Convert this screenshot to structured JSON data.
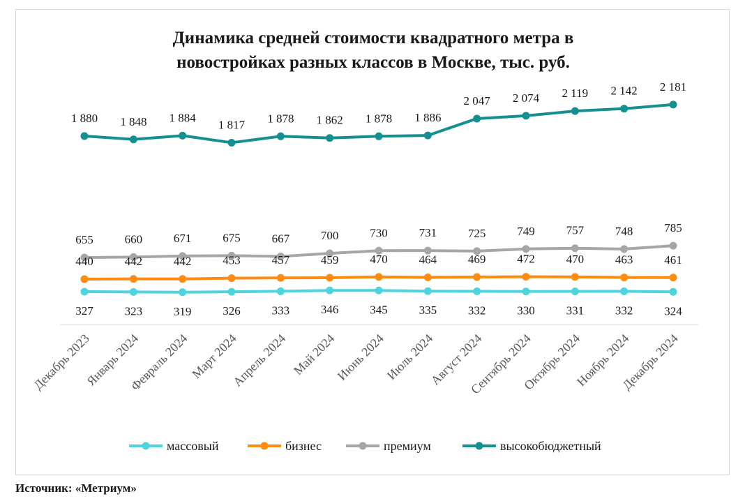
{
  "chart_data": {
    "type": "line",
    "title_lines": [
      "Динамика  средней стоимости  квадратного  метра в",
      "новостройках  разных классов  в Москве, тыс. руб."
    ],
    "categories": [
      "Декабрь 2023",
      "Январь 2024",
      "Февраль 2024",
      "Март 2024",
      "Апрель 2024",
      "Май 2024",
      "Июнь 2024",
      "Июль 2024",
      "Август 2024",
      "Сентябрь 2024",
      "Октябрь 2024",
      "Ноябрь 2024",
      "Декабрь 2024"
    ],
    "series": [
      {
        "name": "массовый",
        "color": "#4fd3dd",
        "label_position": "below",
        "values": [
          327,
          323,
          319,
          326,
          333,
          346,
          345,
          335,
          332,
          330,
          331,
          332,
          324
        ],
        "labels": [
          "327",
          "323",
          "319",
          "326",
          "333",
          "346",
          "345",
          "335",
          "332",
          "330",
          "331",
          "332",
          "324"
        ]
      },
      {
        "name": "бизнес",
        "color": "#ff8c10",
        "label_position": "above",
        "values": [
          440,
          442,
          442,
          453,
          457,
          459,
          470,
          464,
          469,
          472,
          470,
          463,
          461
        ],
        "labels": [
          "440",
          "442",
          "442",
          "453",
          "457",
          "459",
          "470",
          "464",
          "469",
          "472",
          "470",
          "463",
          "461"
        ]
      },
      {
        "name": "премиум",
        "color": "#a6a6a6",
        "label_position": "above",
        "values": [
          655,
          660,
          671,
          675,
          667,
          700,
          730,
          731,
          725,
          749,
          757,
          748,
          785
        ],
        "labels": [
          "655",
          "660",
          "671",
          "675",
          "667",
          "700",
          "730",
          "731",
          "725",
          "749",
          "757",
          "748",
          "785"
        ]
      },
      {
        "name": "высокобюджетный",
        "color": "#13908f",
        "label_position": "above",
        "values": [
          1880,
          1848,
          1884,
          1817,
          1878,
          1862,
          1878,
          1886,
          2047,
          2074,
          2119,
          2142,
          2181
        ],
        "labels": [
          "1 880",
          "1 848",
          "1 884",
          "1 817",
          "1 878",
          "1 862",
          "1 878",
          "1 886",
          "2 047",
          "2 074",
          "2 119",
          "2 142",
          "2 181"
        ]
      }
    ],
    "legend_position": "bottom",
    "grid": false
  },
  "source": "Источник: «Метриум»"
}
